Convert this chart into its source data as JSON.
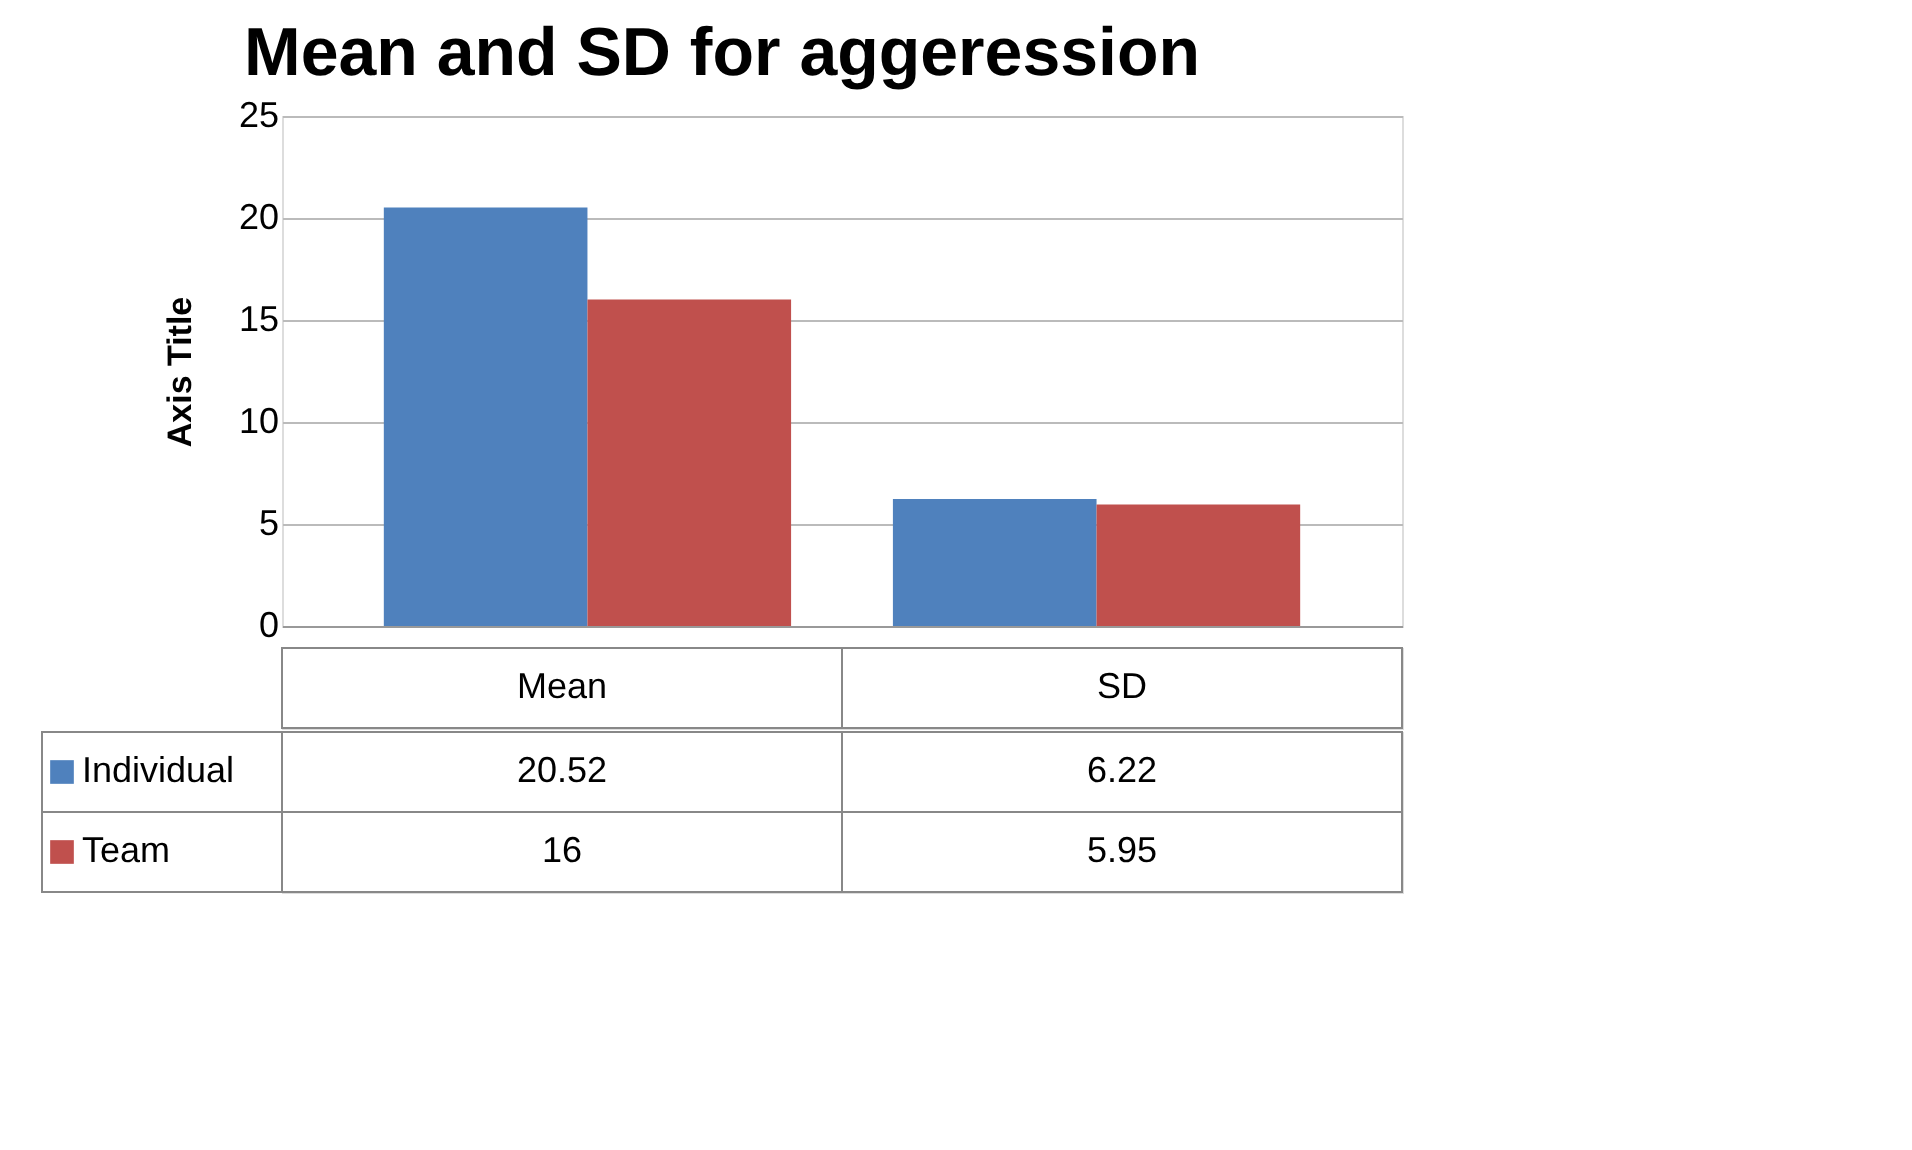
{
  "chart_data": {
    "type": "bar",
    "title": "Mean and SD for aggeression",
    "ylabel": "Axis Title",
    "categories": [
      "Mean",
      "SD"
    ],
    "series": [
      {
        "name": "Individual",
        "color": "#4f81bd",
        "values": [
          20.52,
          6.22
        ]
      },
      {
        "name": "Team",
        "color": "#c0504d",
        "values": [
          16,
          5.95
        ]
      }
    ],
    "ylim": [
      0,
      25
    ],
    "yticks": [
      0,
      5,
      10,
      15,
      20,
      25
    ],
    "grid": "y",
    "legend": "bottom",
    "data_labels": true
  }
}
